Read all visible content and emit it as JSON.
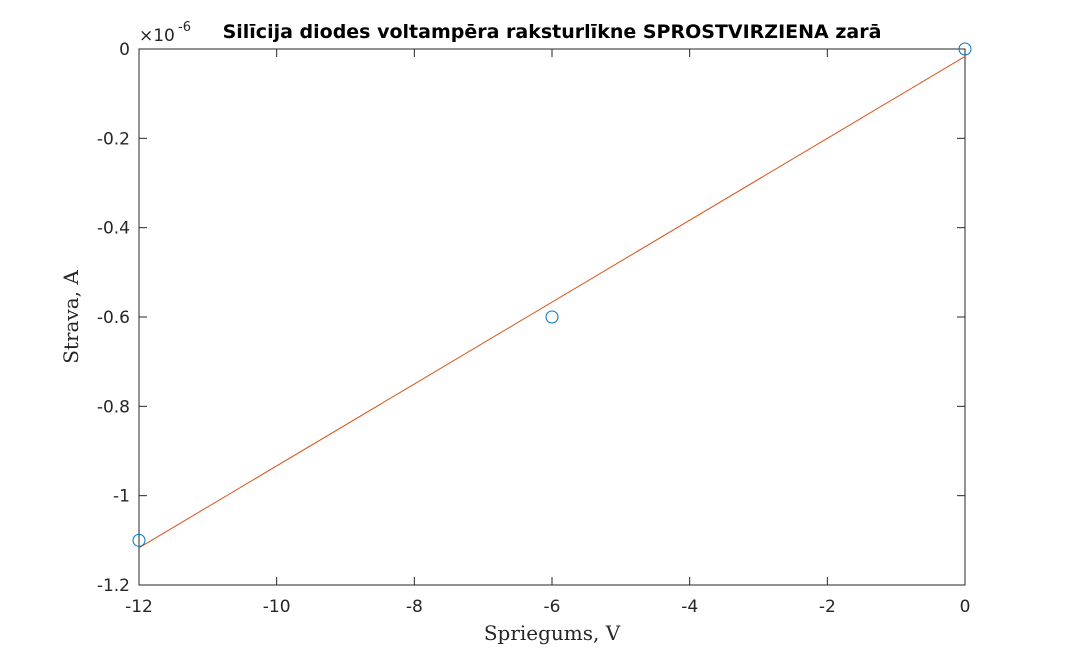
{
  "chart_data": {
    "type": "scatter",
    "title": "Silīcija diodes voltampēra raksturlīkne SPROSTVIRZIENA zarā",
    "xlabel": "Spriegums, V",
    "ylabel": "Strava, A",
    "xlim": [
      -12,
      0
    ],
    "ylim": [
      -1.2,
      0
    ],
    "y_scale_label": "×10",
    "y_scale_exponent": "-6",
    "x_ticks": [
      -12,
      -10,
      -8,
      -6,
      -4,
      -2,
      0
    ],
    "x_tick_labels": [
      "-12",
      "-10",
      "-8",
      "-6",
      "-4",
      "-2",
      "0"
    ],
    "y_ticks": [
      -1.2,
      -1.0,
      -0.8,
      -0.6,
      -0.4,
      -0.2,
      0
    ],
    "y_tick_labels": [
      "-1.2",
      "-1",
      "-0.8",
      "-0.6",
      "-0.4",
      "-0.2",
      "0"
    ],
    "grid": false,
    "series": [
      {
        "kind": "markers",
        "marker": "circle",
        "color": "#0072BD",
        "x": [
          -12,
          -6,
          0
        ],
        "y": [
          -1.1,
          -0.6,
          0
        ]
      },
      {
        "kind": "line",
        "color": "#D95319",
        "x": [
          -12,
          0
        ],
        "y": [
          -1.1167,
          -0.0167
        ]
      }
    ]
  }
}
